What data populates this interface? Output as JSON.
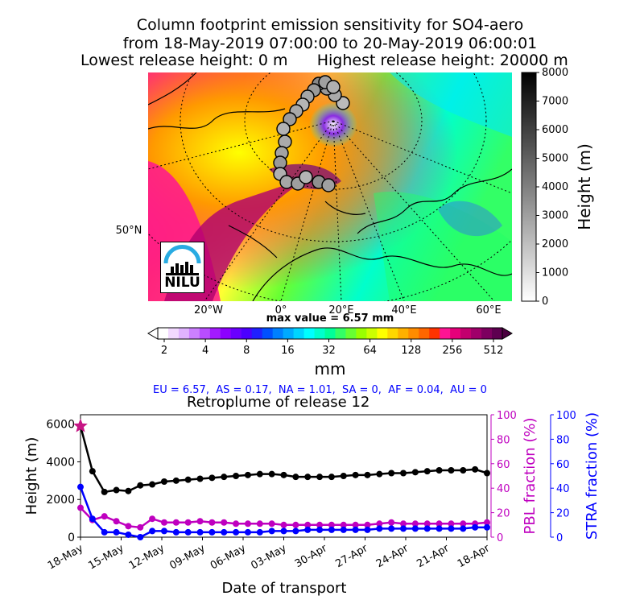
{
  "header": {
    "title_line1": "Column footprint emission sensitivity for SO4-aero",
    "title_line2": "from 18-May-2019 07:00:00 to 20-May-2019 06:00:01",
    "lowest_release": "Lowest release height: 0 m",
    "highest_release": "Highest release height: 20000 m"
  },
  "map": {
    "lat_label": "50°N",
    "lon_labels": [
      "20°W",
      "0°",
      "20°E",
      "40°E",
      "60°E"
    ],
    "logo_text": "NILU"
  },
  "height_colorbar": {
    "label": "Height (m)",
    "ticks": [
      "0",
      "1000",
      "2000",
      "3000",
      "4000",
      "5000",
      "6000",
      "7000",
      "8000"
    ]
  },
  "emission_colorbar": {
    "max_value": "max value = 6.57 mm",
    "unit": "mm",
    "ticks": [
      "2",
      "4",
      "8",
      "16",
      "32",
      "64",
      "128",
      "256",
      "512"
    ]
  },
  "regions": "EU = 6.57,  AS = 0.17,  NA = 1.01,  SA = 0,  AF = 0.04,  AU = 0",
  "colors": {
    "height_series": "#000000",
    "pbl_series": "#bf00bf",
    "stra_series": "#0000ff",
    "release_marker": "#c71585"
  },
  "chart_data": {
    "type": "line",
    "title": "Retroplume of release 12",
    "xlabel": "Date of transport",
    "x_ticks": [
      "18-May",
      "15-May",
      "12-May",
      "09-May",
      "06-May",
      "03-May",
      "30-Apr",
      "27-Apr",
      "24-Apr",
      "21-Apr",
      "18-Apr"
    ],
    "y_left": {
      "label": "Height (m)",
      "lim": [
        0,
        6500
      ],
      "ticks": [
        "0",
        "2000",
        "4000",
        "6000"
      ]
    },
    "y_right_pbl": {
      "label": "PBL fraction (%)",
      "lim": [
        0,
        100
      ],
      "ticks": [
        "0",
        "20",
        "40",
        "60",
        "80",
        "100"
      ]
    },
    "y_right_stra": {
      "label": "STRA fraction (%)",
      "lim": [
        0,
        100
      ],
      "ticks": [
        "0",
        "20",
        "40",
        "60",
        "80",
        "100"
      ]
    },
    "series": [
      {
        "name": "Height (m)",
        "axis": "left",
        "values": [
          5900,
          3500,
          2400,
          2500,
          2450,
          2750,
          2800,
          2950,
          3000,
          3050,
          3100,
          3150,
          3200,
          3250,
          3300,
          3350,
          3350,
          3300,
          3200,
          3200,
          3200,
          3200,
          3250,
          3300,
          3300,
          3350,
          3400,
          3400,
          3450,
          3500,
          3550,
          3550,
          3550,
          3600,
          3400
        ]
      },
      {
        "name": "PBL fraction (%)",
        "axis": "pbl",
        "values": [
          24,
          14,
          17,
          13,
          9,
          8,
          15,
          12,
          12,
          12,
          13,
          12,
          12,
          11,
          11,
          11,
          11,
          10,
          10,
          10,
          10,
          10,
          10,
          10,
          10,
          11,
          12,
          11,
          11,
          11,
          11,
          11,
          11,
          11,
          12
        ]
      },
      {
        "name": "STRA fraction (%)",
        "axis": "stra",
        "values": [
          41,
          15,
          4,
          4,
          2,
          0,
          5,
          5,
          4,
          4,
          4,
          4,
          4,
          4,
          4,
          4,
          5,
          5,
          5,
          6,
          6,
          6,
          6,
          6,
          6,
          7,
          7,
          7,
          7,
          7,
          7,
          7,
          7,
          8,
          8
        ]
      }
    ],
    "release_marker": {
      "x_index": 0,
      "height": 5900,
      "symbol": "star"
    }
  }
}
